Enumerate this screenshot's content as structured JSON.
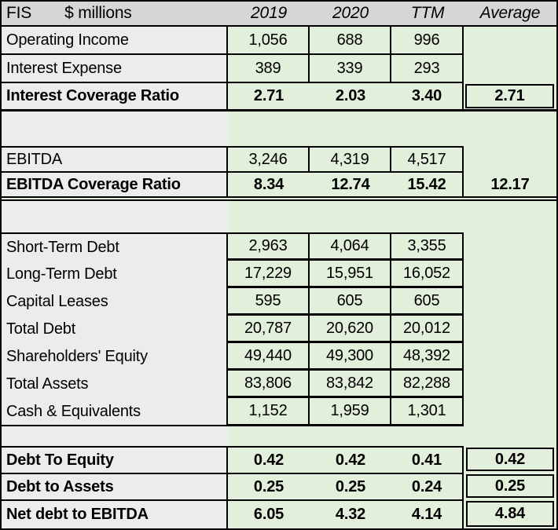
{
  "sheet": {
    "company": "FIS",
    "unit_label": "$ millions",
    "columns": [
      "2019",
      "2020",
      "TTM",
      "Average"
    ],
    "colors": {
      "header_bg": "#d6d6d6",
      "label_bg": "#ececec",
      "data_bg": "#e2efda",
      "border": "#000000"
    },
    "rows": [
      {
        "kind": "top-data",
        "label": "Operating Income",
        "values": [
          "1,056",
          "688",
          "996"
        ],
        "avg": ""
      },
      {
        "kind": "top-data",
        "label": "Interest Expense",
        "values": [
          "389",
          "339",
          "293"
        ],
        "avg": ""
      },
      {
        "kind": "top-ratio",
        "label": "Interest Coverage Ratio",
        "values": [
          "2.71",
          "2.03",
          "3.40"
        ],
        "avg": "2.71"
      },
      {
        "kind": "gap-lg"
      },
      {
        "kind": "mid-data",
        "label": "EBITDA",
        "values": [
          "3,246",
          "4,319",
          "4,517"
        ],
        "avg": ""
      },
      {
        "kind": "mid-ratio",
        "label": "EBITDA Coverage Ratio",
        "values": [
          "8.34",
          "12.74",
          "15.42"
        ],
        "avg": "12.17"
      },
      {
        "kind": "gap-md"
      },
      {
        "kind": "debt-first",
        "label": "Short-Term Debt",
        "values": [
          "2,963",
          "4,064",
          "3,355"
        ],
        "avg": ""
      },
      {
        "kind": "debt",
        "label": "Long-Term Debt",
        "values": [
          "17,229",
          "15,951",
          "16,052"
        ],
        "avg": ""
      },
      {
        "kind": "debt",
        "label": "Capital Leases",
        "values": [
          "595",
          "605",
          "605"
        ],
        "avg": ""
      },
      {
        "kind": "debt",
        "label": "Total Debt",
        "values": [
          "20,787",
          "20,620",
          "20,012"
        ],
        "avg": ""
      },
      {
        "kind": "debt",
        "label": "Shareholders' Equity",
        "values": [
          "49,440",
          "49,300",
          "48,392"
        ],
        "avg": ""
      },
      {
        "kind": "debt",
        "label": "Total Assets",
        "values": [
          "83,806",
          "83,842",
          "82,288"
        ],
        "avg": ""
      },
      {
        "kind": "debt-last",
        "label": "Cash & Equivalents",
        "values": [
          "1,152",
          "1,959",
          "1,301"
        ],
        "avg": ""
      },
      {
        "kind": "gap-sm"
      },
      {
        "kind": "bot-ratio",
        "label": "Debt To Equity",
        "values": [
          "0.42",
          "0.42",
          "0.41"
        ],
        "avg": "0.42"
      },
      {
        "kind": "bot-ratio",
        "label": "Debt to Assets",
        "values": [
          "0.25",
          "0.25",
          "0.24"
        ],
        "avg": "0.25"
      },
      {
        "kind": "bot-ratio-last",
        "label": "Net debt to EBITDA",
        "values": [
          "6.05",
          "4.32",
          "4.14"
        ],
        "avg": "4.84"
      }
    ]
  }
}
